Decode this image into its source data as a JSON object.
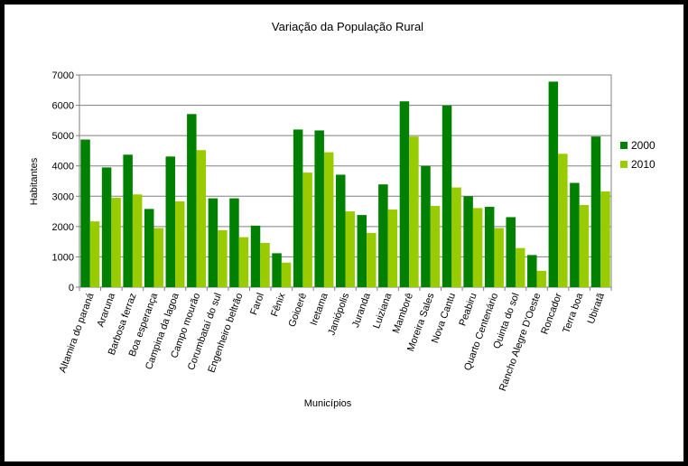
{
  "chart_data": {
    "type": "bar",
    "title": "Variação da População Rural",
    "xlabel": "Municípios",
    "ylabel": "Habitantes",
    "ylim": [
      0,
      7000
    ],
    "yticks": [
      0,
      1000,
      2000,
      3000,
      4000,
      5000,
      6000,
      7000
    ],
    "grid": true,
    "legend_position": "right",
    "categories": [
      "Altamira do paraná",
      "Araruna",
      "Barbosa ferraz",
      "Boa esperança",
      "Campina da lagoa",
      "Campo mourão",
      "Corumbataí do sul",
      "Engenheiro beltrão",
      "Farol",
      "Fênix",
      "Goioerê",
      "Iretama",
      "Janiópolis",
      "Juranda",
      "Luiziana",
      "Mamborê",
      "Moreira Sales",
      "Nova Cantu",
      "Peabiru",
      "Quarto Centenário",
      "Quinta do sol",
      "Rancho Alegre D'Oeste",
      "Roncador",
      "Terra boa",
      "Ubiratã"
    ],
    "series": [
      {
        "name": "2000",
        "color": "#008000",
        "values": [
          4870,
          3950,
          4370,
          2580,
          4310,
          5710,
          2930,
          2930,
          2030,
          1120,
          5200,
          5170,
          3710,
          2380,
          3390,
          6130,
          4000,
          5990,
          3000,
          2650,
          2310,
          1060,
          6780,
          3440,
          4970
        ]
      },
      {
        "name": "2010",
        "color": "#99cc00",
        "values": [
          2170,
          2950,
          3060,
          1950,
          2830,
          4520,
          1880,
          1650,
          1460,
          810,
          3780,
          4450,
          2500,
          1790,
          2560,
          4970,
          2680,
          3290,
          2610,
          1950,
          1290,
          540,
          4400,
          2710,
          3160
        ]
      }
    ]
  }
}
